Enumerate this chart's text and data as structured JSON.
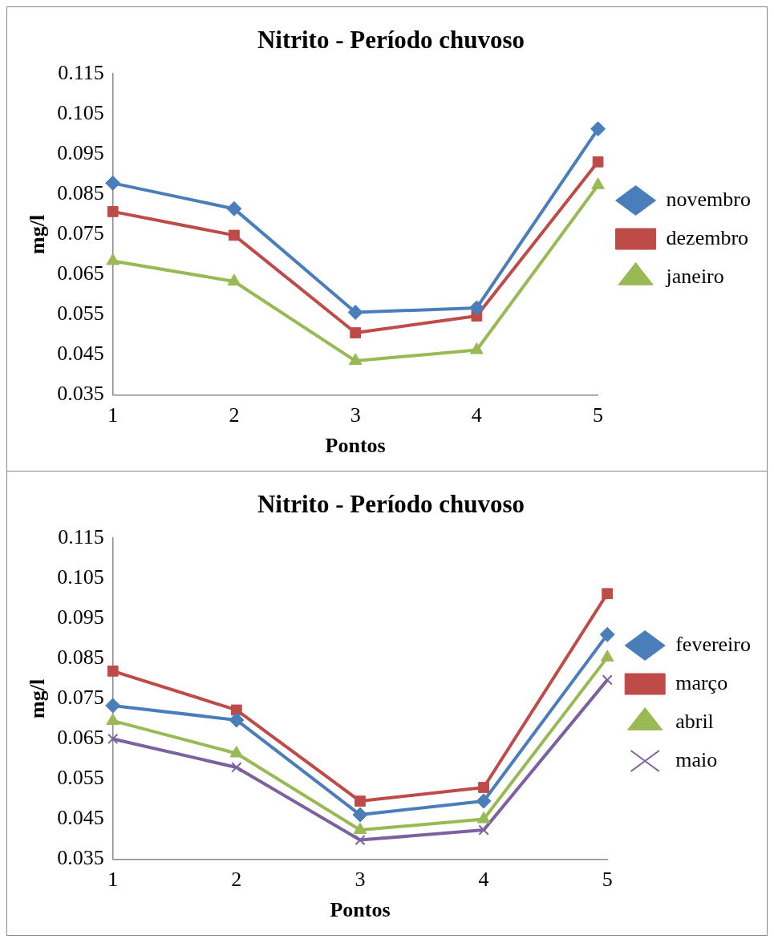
{
  "chart_data": [
    {
      "type": "line",
      "title": "Nitrito - Período chuvoso",
      "xlabel": "Pontos",
      "ylabel": "mg/l",
      "categories": [
        "1",
        "2",
        "3",
        "4",
        "5"
      ],
      "series": [
        {
          "name": "novembro",
          "color": "#4a7ebb",
          "marker": "diamond",
          "values": [
            0.0878,
            0.0814,
            0.0556,
            0.0567,
            0.1013
          ]
        },
        {
          "name": "dezembro",
          "color": "#be4b48",
          "marker": "square",
          "values": [
            0.0807,
            0.0748,
            0.0505,
            0.0547,
            0.0931
          ]
        },
        {
          "name": "janeiro",
          "color": "#98b954",
          "marker": "triangle",
          "values": [
            0.0684,
            0.0633,
            0.0435,
            0.0462,
            0.0873
          ]
        }
      ],
      "ylim": [
        0.035,
        0.115
      ],
      "yticks": [
        0.035,
        0.045,
        0.055,
        0.065,
        0.075,
        0.085,
        0.095,
        0.105,
        0.115
      ],
      "grid": false,
      "legend": "right"
    },
    {
      "type": "line",
      "title": "Nitrito - Período chuvoso",
      "xlabel": "Pontos",
      "ylabel": "mg/l",
      "categories": [
        "1",
        "2",
        "3",
        "4",
        "5"
      ],
      "series": [
        {
          "name": "fevereiro",
          "color": "#4a7ebb",
          "marker": "diamond",
          "values": [
            0.0733,
            0.0697,
            0.0461,
            0.0495,
            0.091
          ]
        },
        {
          "name": "março",
          "color": "#be4b48",
          "marker": "square",
          "values": [
            0.0819,
            0.0722,
            0.0495,
            0.0529,
            0.1012
          ]
        },
        {
          "name": "abril",
          "color": "#98b954",
          "marker": "triangle",
          "values": [
            0.0695,
            0.0614,
            0.0423,
            0.045,
            0.0853
          ]
        },
        {
          "name": "maio",
          "color": "#7d60a0",
          "marker": "cross",
          "values": [
            0.065,
            0.0579,
            0.0398,
            0.0423,
            0.0797
          ]
        }
      ],
      "ylim": [
        0.035,
        0.115
      ],
      "yticks": [
        0.035,
        0.045,
        0.055,
        0.065,
        0.075,
        0.085,
        0.095,
        0.105,
        0.115
      ],
      "grid": false,
      "legend": "right"
    }
  ]
}
